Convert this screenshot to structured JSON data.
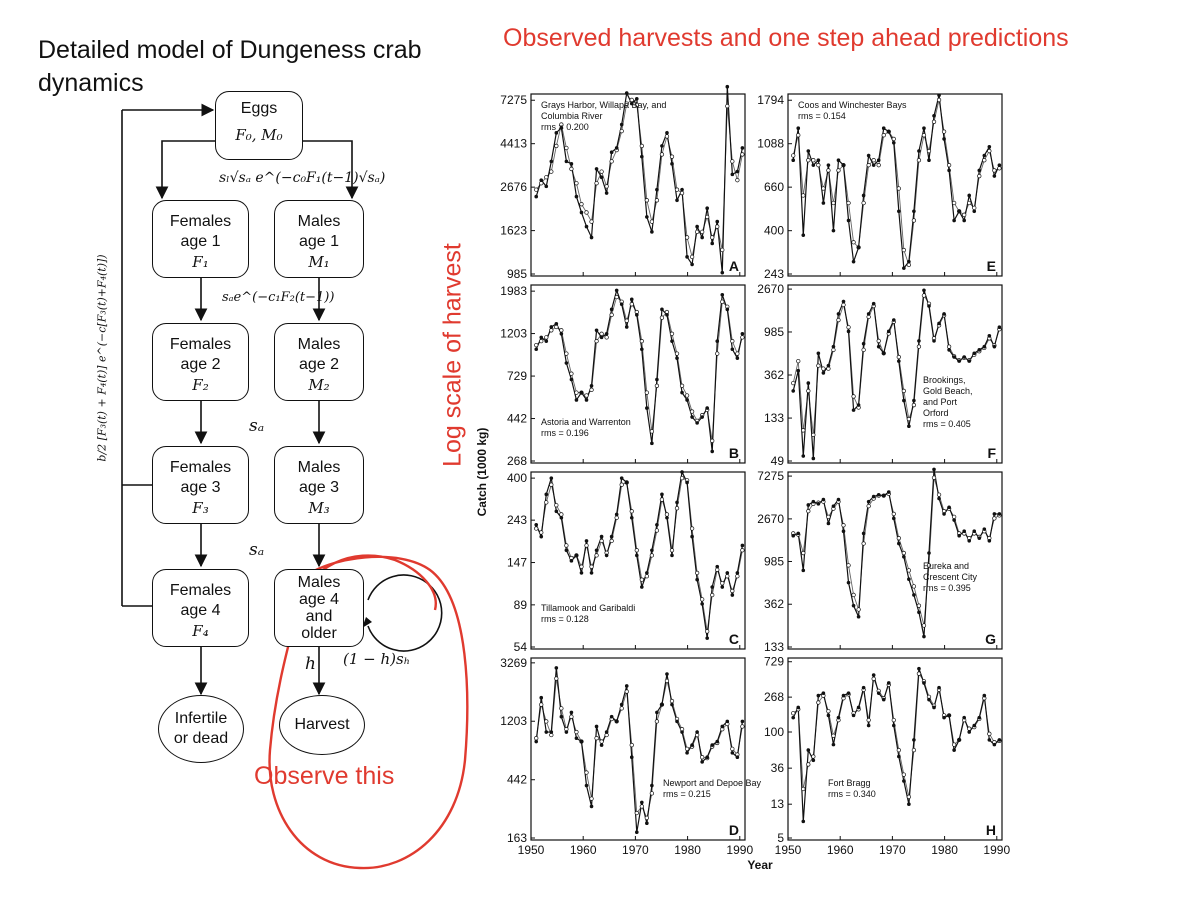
{
  "slide": {
    "title": "Detailed model of Dungeness crab dynamics",
    "charts_title": "Observed harvests and one step ahead predictions",
    "log_scale_label": "Log scale of harvest",
    "observe_label": "Observe this",
    "annotation_color": "#e03a2f"
  },
  "diagram": {
    "eggs": {
      "label": "Eggs",
      "symbol": "F₀, M₀"
    },
    "age1_transition": "sₗ√sₐ e^(−c₀F₁(t−1)√sₐ)",
    "age2_transition": "sₐe^(−c₁F₂(t−1))",
    "survival_label": "sₐ",
    "fecundity_label": "b/2 [F₃(t) + F₄(t)] e^(−c[F₃(t)+F₄(t)])",
    "females": [
      {
        "line1": "Females",
        "line2": "age 1",
        "symbol": "F₁"
      },
      {
        "line1": "Females",
        "line2": "age 2",
        "symbol": "F₂"
      },
      {
        "line1": "Females",
        "line2": "age 3",
        "symbol": "F₃"
      },
      {
        "line1": "Females",
        "line2": "age 4",
        "symbol": "F₄"
      }
    ],
    "males": [
      {
        "line1": "Males",
        "line2": "age 1",
        "symbol": "M₁"
      },
      {
        "line1": "Males",
        "line2": "age 2",
        "symbol": "M₂"
      },
      {
        "line1": "Males",
        "line2": "age 3",
        "symbol": "M₃"
      }
    ],
    "males_age4": {
      "line1": "Males",
      "line2": "age 4",
      "line3": "and",
      "line4": "older"
    },
    "harvest_rate_label": "h",
    "self_loop_label": "(1 − h)sₕ",
    "infertile": {
      "line1": "Infertile",
      "line2": "or dead"
    },
    "harvest": {
      "label": "Harvest"
    }
  },
  "chart_data": {
    "type": "line",
    "x_label": "Year",
    "y_label": "Catch (1000 kg)",
    "x_ticks": [
      1950,
      1960,
      1970,
      1980,
      1990
    ],
    "xlim": [
      1950,
      1991
    ],
    "y_scale": "log",
    "panels": [
      {
        "letter": "A",
        "name": "Grays Harbor, Willapa Bay, and Columbia River",
        "rms": "rms = 0.200",
        "y_ticks": [
          985,
          1623,
          2676,
          4413,
          7275
        ],
        "observed": [
          2400,
          2900,
          2700,
          3600,
          5000,
          5300,
          3600,
          3500,
          2400,
          2000,
          1700,
          1500,
          3300,
          3000,
          2500,
          4000,
          4200,
          5500,
          7900,
          7000,
          7400,
          3800,
          1900,
          1600,
          2600,
          4300,
          5000,
          3500,
          2300,
          2600,
          1200,
          1100,
          1700,
          1500,
          2100,
          1400,
          1800,
          1000,
          8500,
          3100,
          3200,
          4200
        ],
        "predicted": [
          2600,
          2800,
          3000,
          3200,
          4300,
          5500,
          4200,
          3300,
          2800,
          2200,
          2000,
          1800,
          2800,
          3200,
          2700,
          3600,
          4100,
          5100,
          7000,
          7300,
          6900,
          4300,
          2300,
          1800,
          2300,
          3900,
          4800,
          3800,
          2600,
          2500,
          1500,
          1200,
          1600,
          1600,
          1900,
          1500,
          1700,
          1300,
          6800,
          3600,
          2900,
          3900
        ]
      },
      {
        "letter": "E",
        "name": "Coos and Winchester Bays",
        "rms": "rms = 0.154",
        "y_ticks": [
          243,
          400,
          660,
          1088,
          1794
        ],
        "observed": [
          900,
          1300,
          380,
          1000,
          850,
          900,
          550,
          850,
          400,
          900,
          850,
          450,
          280,
          330,
          600,
          950,
          850,
          900,
          1300,
          1250,
          1100,
          500,
          260,
          280,
          500,
          1000,
          1300,
          900,
          1500,
          1900,
          1150,
          800,
          450,
          500,
          450,
          600,
          500,
          800,
          950,
          1050,
          750,
          850
        ],
        "predicted": [
          950,
          1200,
          600,
          900,
          900,
          850,
          650,
          800,
          550,
          800,
          850,
          550,
          350,
          330,
          550,
          850,
          900,
          850,
          1200,
          1250,
          1150,
          650,
          320,
          270,
          450,
          900,
          1200,
          1000,
          1400,
          1800,
          1250,
          850,
          550,
          500,
          480,
          550,
          520,
          750,
          900,
          1000,
          800,
          820
        ]
      },
      {
        "letter": "B",
        "name": "Astoria and Warrenton",
        "rms": "rms = 0.196",
        "y_ticks": [
          268,
          442,
          729,
          1203,
          1983
        ],
        "observed": [
          1000,
          1150,
          1100,
          1300,
          1350,
          1200,
          850,
          700,
          550,
          600,
          550,
          650,
          1250,
          1150,
          1200,
          1600,
          2000,
          1700,
          1300,
          1800,
          1500,
          1000,
          500,
          330,
          700,
          1600,
          1500,
          1100,
          900,
          600,
          550,
          450,
          420,
          450,
          500,
          300,
          1100,
          1900,
          1600,
          1000,
          900,
          1200
        ],
        "predicted": [
          1050,
          1100,
          1150,
          1250,
          1300,
          1250,
          950,
          750,
          600,
          600,
          580,
          620,
          1100,
          1200,
          1150,
          1500,
          1850,
          1750,
          1400,
          1700,
          1550,
          1100,
          600,
          380,
          650,
          1450,
          1550,
          1200,
          950,
          650,
          580,
          480,
          430,
          460,
          490,
          340,
          950,
          1750,
          1650,
          1100,
          950,
          1150
        ]
      },
      {
        "letter": "F",
        "name": "Brookings, Gold Beach, and Port Orford",
        "rms": "rms = 0.405",
        "y_ticks": [
          49,
          133,
          362,
          985,
          2670
        ],
        "observed": [
          250,
          400,
          55,
          300,
          52,
          600,
          380,
          450,
          700,
          1500,
          2000,
          1000,
          160,
          180,
          750,
          1500,
          1900,
          700,
          600,
          1000,
          1300,
          500,
          200,
          110,
          200,
          800,
          2600,
          1800,
          800,
          1200,
          1500,
          650,
          550,
          500,
          550,
          500,
          600,
          650,
          700,
          900,
          700,
          1100
        ],
        "predicted": [
          300,
          500,
          100,
          250,
          90,
          450,
          420,
          420,
          650,
          1300,
          1850,
          1100,
          220,
          170,
          650,
          1400,
          1800,
          800,
          600,
          950,
          1250,
          550,
          250,
          130,
          180,
          700,
          2300,
          1900,
          850,
          1150,
          1450,
          700,
          560,
          510,
          540,
          510,
          580,
          630,
          680,
          850,
          720,
          1050
        ]
      },
      {
        "letter": "C",
        "name": "Tillamook and Garibaldi",
        "rms": "rms = 0.128",
        "y_ticks": [
          54,
          89,
          147,
          243,
          400
        ],
        "observed": [
          230,
          200,
          330,
          400,
          270,
          250,
          170,
          150,
          160,
          130,
          190,
          130,
          170,
          200,
          160,
          200,
          260,
          400,
          380,
          250,
          160,
          110,
          130,
          170,
          230,
          330,
          250,
          160,
          300,
          430,
          380,
          200,
          120,
          90,
          60,
          110,
          140,
          110,
          130,
          100,
          130,
          180
        ],
        "predicted": [
          220,
          210,
          300,
          370,
          290,
          260,
          180,
          155,
          160,
          140,
          180,
          140,
          160,
          190,
          165,
          190,
          250,
          370,
          380,
          270,
          170,
          120,
          125,
          160,
          215,
          310,
          260,
          170,
          280,
          400,
          390,
          220,
          130,
          95,
          65,
          100,
          135,
          115,
          125,
          105,
          125,
          170
        ]
      },
      {
        "letter": "G",
        "name": "Eureka and Crescent City",
        "rms": "rms = 0.395",
        "y_ticks": [
          133,
          362,
          985,
          2670,
          7275
        ],
        "observed": [
          1800,
          1900,
          800,
          3700,
          4000,
          3800,
          4200,
          2400,
          3600,
          4200,
          2000,
          600,
          350,
          270,
          1900,
          4000,
          4500,
          4700,
          4600,
          5000,
          2700,
          1500,
          1100,
          650,
          450,
          300,
          170,
          1200,
          8500,
          4300,
          3000,
          3500,
          2600,
          1800,
          2000,
          1600,
          2000,
          1700,
          2100,
          1600,
          3000,
          3000
        ],
        "predicted": [
          1900,
          1850,
          1200,
          3200,
          3800,
          3900,
          4000,
          2800,
          3400,
          4000,
          2300,
          900,
          450,
          320,
          1500,
          3600,
          4300,
          4600,
          4600,
          4800,
          3000,
          1700,
          1200,
          800,
          550,
          350,
          220,
          900,
          7000,
          4700,
          3200,
          3400,
          2800,
          1900,
          1900,
          1700,
          1900,
          1750,
          2000,
          1700,
          2700,
          2900
        ]
      },
      {
        "letter": "D",
        "name": "Newport and Depoe Bay",
        "rms": "rms = 0.215",
        "y_ticks": [
          163,
          442,
          1203,
          3269
        ],
        "observed": [
          850,
          1800,
          1000,
          1000,
          3000,
          1300,
          1000,
          1400,
          900,
          850,
          400,
          280,
          1100,
          800,
          1000,
          1300,
          1200,
          1600,
          2200,
          650,
          180,
          300,
          210,
          400,
          1400,
          1600,
          2700,
          1600,
          1200,
          1000,
          700,
          800,
          1000,
          600,
          650,
          800,
          850,
          1100,
          1200,
          700,
          650,
          1200
        ],
        "predicted": [
          900,
          1600,
          1200,
          950,
          2500,
          1500,
          1050,
          1300,
          1000,
          850,
          500,
          320,
          900,
          850,
          950,
          1250,
          1200,
          1500,
          2000,
          800,
          250,
          280,
          230,
          350,
          1200,
          1600,
          2400,
          1700,
          1250,
          1050,
          750,
          780,
          950,
          650,
          640,
          780,
          830,
          1050,
          1150,
          750,
          680,
          1100
        ]
      },
      {
        "letter": "H",
        "name": "Fort Bragg",
        "rms": "rms = 0.340",
        "y_ticks": [
          5,
          13,
          36,
          100,
          268,
          729
        ],
        "observed": [
          150,
          200,
          8,
          60,
          45,
          280,
          300,
          160,
          70,
          150,
          280,
          300,
          160,
          200,
          350,
          120,
          500,
          300,
          250,
          400,
          120,
          50,
          25,
          13,
          80,
          600,
          400,
          250,
          200,
          350,
          150,
          160,
          60,
          80,
          150,
          100,
          120,
          150,
          280,
          80,
          70,
          80
        ],
        "predicted": [
          170,
          190,
          20,
          40,
          50,
          230,
          280,
          180,
          90,
          140,
          260,
          290,
          170,
          190,
          330,
          140,
          450,
          320,
          260,
          380,
          140,
          60,
          30,
          16,
          60,
          520,
          420,
          270,
          210,
          330,
          160,
          160,
          70,
          80,
          140,
          110,
          115,
          145,
          260,
          95,
          75,
          78
        ]
      }
    ]
  }
}
